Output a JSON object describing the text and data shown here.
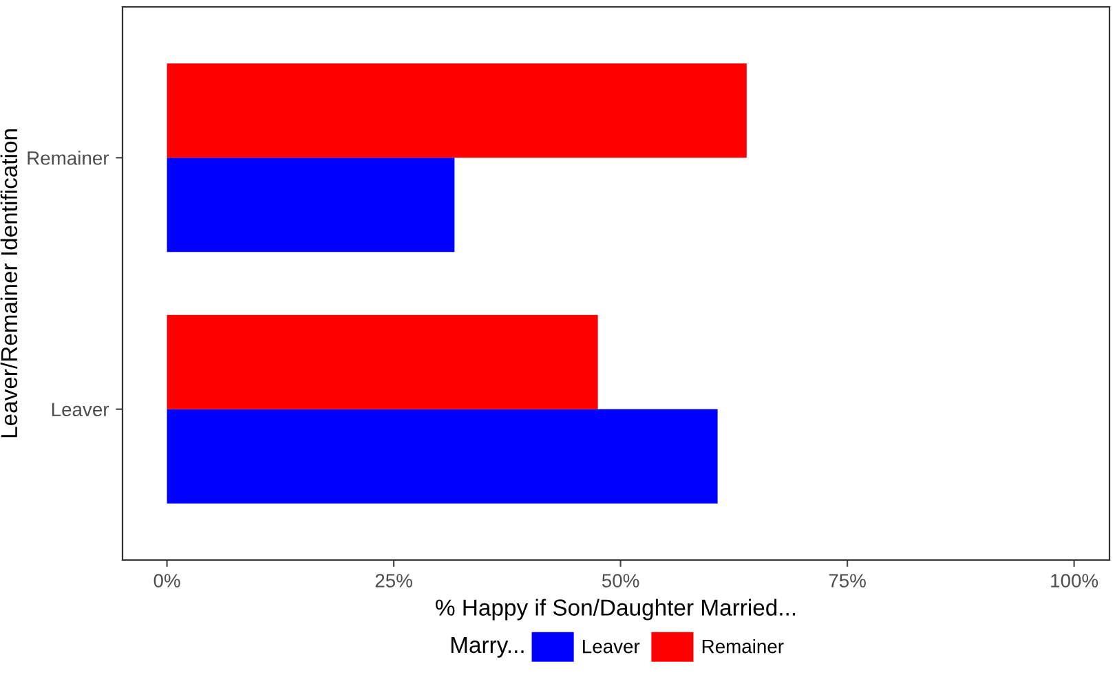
{
  "chart_data": {
    "type": "bar",
    "orientation": "horizontal",
    "xlabel": "% Happy if Son/Daughter Married...",
    "ylabel": "Leaver/Remainer Identification",
    "legend_title": "Marry...",
    "legend": "bottom",
    "grid": false,
    "categories": [
      "Remainer",
      "Leaver"
    ],
    "series": [
      {
        "name": "Leaver",
        "color": "#0000ff",
        "values": [
          31.7,
          60.7
        ]
      },
      {
        "name": "Remainer",
        "color": "#ff0000",
        "values": [
          63.9,
          47.5
        ]
      }
    ],
    "xlim": [
      -4.9,
      103.9
    ],
    "xticks": [
      {
        "value": 0,
        "label": "0%"
      },
      {
        "value": 25,
        "label": "25%"
      },
      {
        "value": 50,
        "label": "50%"
      },
      {
        "value": 75,
        "label": "75%"
      },
      {
        "value": 100,
        "label": "100%"
      }
    ]
  }
}
